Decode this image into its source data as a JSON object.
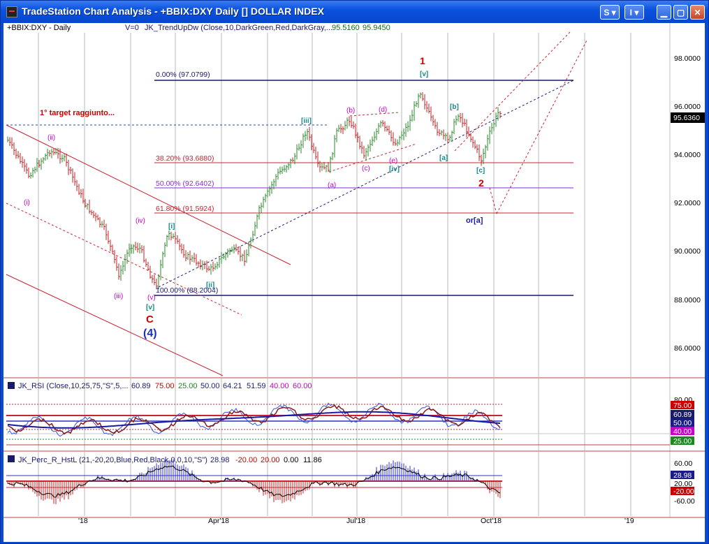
{
  "window": {
    "title": "TradeStation Chart Analysis - +BBIX:DXY Daily [] DOLLAR INDEX",
    "buttons": {
      "s": "S",
      "i": "I"
    }
  },
  "price_panel": {
    "symbol": "+BBIX:DXY - Daily",
    "v0": "V=0",
    "indicator": "JK_TrendUpDw (Close,10,DarkGreen,Red,DarkGray,...",
    "ind_val1": "95.5160",
    "ind_val2": "95.9450",
    "current_price": "95.6360",
    "target_note": "1° target raggiunto...",
    "y_ticks": [
      "98.0000",
      "96.0000",
      "94.0000",
      "92.0000",
      "90.0000",
      "88.0000",
      "86.0000"
    ],
    "fib": [
      {
        "label": "0.00% (97.0799)"
      },
      {
        "label": "38.20% (93.6880)"
      },
      {
        "label": "50.00% (92.6402)"
      },
      {
        "label": "61.80% (91.5924)"
      },
      {
        "label": "100.00% (88.2004)"
      }
    ],
    "waves": {
      "w_i": "(i)",
      "w_ii": "(ii)",
      "w_iii": "(iii)",
      "w_iv": "(iv)",
      "w_v": "(v)",
      "b_v": "[v]",
      "b_i": "[i]",
      "b_ii": "[ii]",
      "b_iii": "[iii]",
      "b_iv": "[iv]",
      "b_v2": "[v]",
      "b_a": "[a]",
      "b_b": "[b]",
      "b_c": "[c]",
      "a": "(a)",
      "b": "(b)",
      "c": "(c)",
      "d": "(d)",
      "e": "(e)",
      "C": "C",
      "four": "(4)",
      "one": "1",
      "two": "2",
      "or_a": "or[a]"
    }
  },
  "rsi_panel": {
    "label": "JK_RSI (Close,10,25,75,\"S\",5,...",
    "values": [
      "60.89",
      "75.00",
      "25.00",
      "50.00",
      "64.21",
      "51.59",
      "40.00",
      "60.00"
    ],
    "axis": [
      "80.00",
      "75.00",
      "60.89",
      "50.00",
      "40.00",
      "25.00"
    ]
  },
  "perc_panel": {
    "label": "JK_Perc_R_HstL (21,-20,20,Blue,Red,Black,0,0,10,\"S\")",
    "values": [
      "28.98",
      "-20.00",
      "20.00",
      "0.00",
      "11.86"
    ],
    "axis": [
      "60.00",
      "28.98",
      "20.00",
      "-20.00",
      "-60.00"
    ]
  },
  "time_axis": [
    "'18",
    "Apr'18",
    "Jul'18",
    "Oct'18",
    "'19"
  ]
}
